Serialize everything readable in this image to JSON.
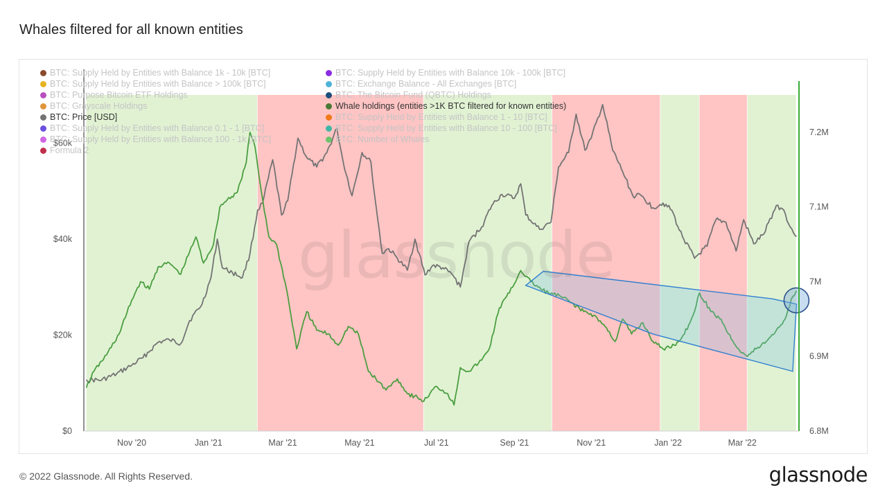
{
  "title": "Whales filtered for all known entities",
  "footer": {
    "copyright": "© 2022 Glassnode. All Rights Reserved.",
    "brand": "glassnode",
    "watermark": "glassnode"
  },
  "legend": {
    "left": [
      {
        "label": "BTC: Supply Held by Entities with Balance 1k - 10k [BTC]",
        "color": "#8b4a2b",
        "active": false
      },
      {
        "label": "BTC: Supply Held by Entities with Balance > 100k [BTC]",
        "color": "#e6b422",
        "active": false
      },
      {
        "label": "BTC: Purpose Bitcoin ETF Holdings",
        "color": "#b84fc0",
        "active": false
      },
      {
        "label": "BTC: Grayscale Holdings",
        "color": "#e0953a",
        "active": false
      },
      {
        "label": "BTC: Price [USD]",
        "color": "#737373",
        "active": true
      },
      {
        "label": "BTC: Supply Held by Entities with Balance 0.1 - 1 [BTC]",
        "color": "#6b4fe0",
        "active": false
      },
      {
        "label": "BTC: Supply Held by Entities with Balance 100 - 1k [BTC]",
        "color": "#cf66e6",
        "active": false
      },
      {
        "label": "Formula 2",
        "color": "#c0304a",
        "active": false
      }
    ],
    "right": [
      {
        "label": "BTC: Supply Held by Entities with Balance 10k - 100k [BTC]",
        "color": "#8a2be2",
        "active": false
      },
      {
        "label": "BTC: Exchange Balance - All Exchanges [BTC]",
        "color": "#4eb3d8",
        "active": false
      },
      {
        "label": "BTC: The Bitcoin Fund (QBTC) Holdings",
        "color": "#1f4e79",
        "active": false
      },
      {
        "label": "Whale holdings (entities >1K BTC filtered for known entities)",
        "color": "#4a7a35",
        "active": true
      },
      {
        "label": "BTC: Supply Held by Entities with Balance 1 - 10 [BTC]",
        "color": "#f07a1a",
        "active": false
      },
      {
        "label": "BTC: Supply Held by Entities with Balance 10 - 100 [BTC]",
        "color": "#3fb7a5",
        "active": false
      },
      {
        "label": "BTC: Number of Whales",
        "color": "#6cc46c",
        "active": false
      }
    ]
  },
  "chart_data": {
    "type": "line",
    "title": "Whales filtered for all known entities",
    "x_range": [
      "2020-09-24",
      "2022-04-15"
    ],
    "x_ticks": [
      {
        "label": "Nov '20",
        "date": "2020-11-01"
      },
      {
        "label": "Jan '21",
        "date": "2021-01-01"
      },
      {
        "label": "Mar '21",
        "date": "2021-03-01"
      },
      {
        "label": "May '21",
        "date": "2021-05-01"
      },
      {
        "label": "Jul '21",
        "date": "2021-07-01"
      },
      {
        "label": "Sep '21",
        "date": "2021-09-01"
      },
      {
        "label": "Nov '21",
        "date": "2021-11-01"
      },
      {
        "label": "Jan '22",
        "date": "2022-01-01"
      },
      {
        "label": "Mar '22",
        "date": "2022-03-01"
      }
    ],
    "y_left": {
      "min": 0,
      "max": 70000,
      "ticks": [
        {
          "v": 0,
          "label": "$0"
        },
        {
          "v": 20000,
          "label": "$20k"
        },
        {
          "v": 40000,
          "label": "$40k"
        },
        {
          "v": 60000,
          "label": "$60k"
        }
      ]
    },
    "y_right": {
      "min": 6800000,
      "max": 7250000,
      "ticks": [
        {
          "v": 6800000,
          "label": "6.8M"
        },
        {
          "v": 6900000,
          "label": "6.9M"
        },
        {
          "v": 7000000,
          "label": "7M"
        },
        {
          "v": 7100000,
          "label": "7.1M"
        },
        {
          "v": 7200000,
          "label": "7.2M"
        }
      ]
    },
    "shaded_periods": [
      {
        "start": "2020-09-26",
        "end": "2021-02-09",
        "color": "#e1f2d3"
      },
      {
        "start": "2021-02-09",
        "end": "2021-06-21",
        "color": "#ffc4c4"
      },
      {
        "start": "2021-06-21",
        "end": "2021-10-01",
        "color": "#e1f2d3"
      },
      {
        "start": "2021-10-01",
        "end": "2021-12-26",
        "color": "#ffc4c4"
      },
      {
        "start": "2021-12-26",
        "end": "2022-01-26",
        "color": "#e1f2d3"
      },
      {
        "start": "2022-01-26",
        "end": "2022-03-05",
        "color": "#ffc4c4"
      },
      {
        "start": "2022-03-05",
        "end": "2022-04-13",
        "color": "#e1f2d3"
      }
    ],
    "series": [
      {
        "name": "BTC: Price [USD]",
        "axis": "left",
        "color": "#737373",
        "points": [
          [
            "2020-09-26",
            10700
          ],
          [
            "2020-10-08",
            10600
          ],
          [
            "2020-10-20",
            11900
          ],
          [
            "2020-11-01",
            13700
          ],
          [
            "2020-11-10",
            15300
          ],
          [
            "2020-11-22",
            18500
          ],
          [
            "2020-12-01",
            19000
          ],
          [
            "2020-12-10",
            18200
          ],
          [
            "2020-12-17",
            23000
          ],
          [
            "2020-12-27",
            26500
          ],
          [
            "2021-01-03",
            32000
          ],
          [
            "2021-01-08",
            40000
          ],
          [
            "2021-01-12",
            34000
          ],
          [
            "2021-01-20",
            33000
          ],
          [
            "2021-01-28",
            32000
          ],
          [
            "2021-02-03",
            37000
          ],
          [
            "2021-02-09",
            46000
          ],
          [
            "2021-02-13",
            47500
          ],
          [
            "2021-02-21",
            56500
          ],
          [
            "2021-02-28",
            45000
          ],
          [
            "2021-03-05",
            48000
          ],
          [
            "2021-03-13",
            61000
          ],
          [
            "2021-03-20",
            57000
          ],
          [
            "2021-03-28",
            55000
          ],
          [
            "2021-04-05",
            58000
          ],
          [
            "2021-04-13",
            63000
          ],
          [
            "2021-04-18",
            56000
          ],
          [
            "2021-04-25",
            49000
          ],
          [
            "2021-05-03",
            58000
          ],
          [
            "2021-05-10",
            56000
          ],
          [
            "2021-05-13",
            49000
          ],
          [
            "2021-05-19",
            37000
          ],
          [
            "2021-05-24",
            38000
          ],
          [
            "2021-05-31",
            36000
          ],
          [
            "2021-06-08",
            33500
          ],
          [
            "2021-06-14",
            40000
          ],
          [
            "2021-06-22",
            32500
          ],
          [
            "2021-06-28",
            34500
          ],
          [
            "2021-07-06",
            34000
          ],
          [
            "2021-07-14",
            32500
          ],
          [
            "2021-07-20",
            30000
          ],
          [
            "2021-07-27",
            39500
          ],
          [
            "2021-08-06",
            42500
          ],
          [
            "2021-08-14",
            47000
          ],
          [
            "2021-08-22",
            49300
          ],
          [
            "2021-09-01",
            48500
          ],
          [
            "2021-09-06",
            51500
          ],
          [
            "2021-09-10",
            45000
          ],
          [
            "2021-09-21",
            42000
          ],
          [
            "2021-09-30",
            43500
          ],
          [
            "2021-10-06",
            55000
          ],
          [
            "2021-10-14",
            58000
          ],
          [
            "2021-10-20",
            66000
          ],
          [
            "2021-10-27",
            58500
          ],
          [
            "2021-11-01",
            61000
          ],
          [
            "2021-11-10",
            68000
          ],
          [
            "2021-11-18",
            58500
          ],
          [
            "2021-11-26",
            54000
          ],
          [
            "2021-12-04",
            49000
          ],
          [
            "2021-12-11",
            49000
          ],
          [
            "2021-12-20",
            46500
          ],
          [
            "2021-12-28",
            47500
          ],
          [
            "2022-01-04",
            46000
          ],
          [
            "2022-01-10",
            41800
          ],
          [
            "2022-01-22",
            36000
          ],
          [
            "2022-02-01",
            38500
          ],
          [
            "2022-02-08",
            44000
          ],
          [
            "2022-02-16",
            43500
          ],
          [
            "2022-02-24",
            37500
          ],
          [
            "2022-03-02",
            44000
          ],
          [
            "2022-03-10",
            39000
          ],
          [
            "2022-03-18",
            41000
          ],
          [
            "2022-03-28",
            47000
          ],
          [
            "2022-04-03",
            46000
          ],
          [
            "2022-04-08",
            42500
          ],
          [
            "2022-04-13",
            40500
          ]
        ]
      },
      {
        "name": "Whale holdings (entities >1K BTC filtered for known entities)",
        "axis": "right",
        "color": "#4a9e3f",
        "points": [
          [
            "2020-09-26",
            6858000
          ],
          [
            "2020-10-02",
            6880000
          ],
          [
            "2020-10-12",
            6902000
          ],
          [
            "2020-10-22",
            6930000
          ],
          [
            "2020-11-01",
            6975000
          ],
          [
            "2020-11-08",
            7000000
          ],
          [
            "2020-11-15",
            6990000
          ],
          [
            "2020-11-22",
            7020000
          ],
          [
            "2020-12-01",
            7025000
          ],
          [
            "2020-12-10",
            7010000
          ],
          [
            "2020-12-17",
            7040000
          ],
          [
            "2020-12-22",
            7060000
          ],
          [
            "2020-12-28",
            7025000
          ],
          [
            "2021-01-05",
            7050000
          ],
          [
            "2021-01-10",
            7100000
          ],
          [
            "2021-01-16",
            7110000
          ],
          [
            "2021-01-24",
            7120000
          ],
          [
            "2021-01-31",
            7160000
          ],
          [
            "2021-02-03",
            7200000
          ],
          [
            "2021-02-07",
            7180000
          ],
          [
            "2021-02-12",
            7120000
          ],
          [
            "2021-02-18",
            7060000
          ],
          [
            "2021-02-24",
            7050000
          ],
          [
            "2021-03-04",
            6990000
          ],
          [
            "2021-03-12",
            6910000
          ],
          [
            "2021-03-20",
            6960000
          ],
          [
            "2021-03-28",
            6935000
          ],
          [
            "2021-04-06",
            6930000
          ],
          [
            "2021-04-14",
            6915000
          ],
          [
            "2021-04-22",
            6940000
          ],
          [
            "2021-04-30",
            6930000
          ],
          [
            "2021-05-08",
            6880000
          ],
          [
            "2021-05-14",
            6870000
          ],
          [
            "2021-05-22",
            6855000
          ],
          [
            "2021-05-31",
            6870000
          ],
          [
            "2021-06-08",
            6850000
          ],
          [
            "2021-06-16",
            6845000
          ],
          [
            "2021-06-21",
            6840000
          ],
          [
            "2021-07-01",
            6860000
          ],
          [
            "2021-07-10",
            6850000
          ],
          [
            "2021-07-15",
            6835000
          ],
          [
            "2021-07-20",
            6885000
          ],
          [
            "2021-07-27",
            6880000
          ],
          [
            "2021-08-06",
            6895000
          ],
          [
            "2021-08-12",
            6910000
          ],
          [
            "2021-08-20",
            6965000
          ],
          [
            "2021-08-28",
            6985000
          ],
          [
            "2021-09-06",
            7015000
          ],
          [
            "2021-09-14",
            7000000
          ],
          [
            "2021-09-22",
            6990000
          ],
          [
            "2021-09-28",
            6985000
          ],
          [
            "2021-10-08",
            6980000
          ],
          [
            "2021-10-18",
            6970000
          ],
          [
            "2021-10-26",
            6960000
          ],
          [
            "2021-11-03",
            6955000
          ],
          [
            "2021-11-12",
            6940000
          ],
          [
            "2021-11-20",
            6920000
          ],
          [
            "2021-11-26",
            6950000
          ],
          [
            "2021-12-03",
            6930000
          ],
          [
            "2021-12-12",
            6945000
          ],
          [
            "2021-12-20",
            6920000
          ],
          [
            "2021-12-28",
            6910000
          ],
          [
            "2022-01-06",
            6915000
          ],
          [
            "2022-01-14",
            6930000
          ],
          [
            "2022-01-22",
            6960000
          ],
          [
            "2022-01-26",
            6985000
          ],
          [
            "2022-02-04",
            6960000
          ],
          [
            "2022-02-12",
            6950000
          ],
          [
            "2022-02-18",
            6930000
          ],
          [
            "2022-02-26",
            6910000
          ],
          [
            "2022-03-05",
            6900000
          ],
          [
            "2022-03-12",
            6910000
          ],
          [
            "2022-03-20",
            6920000
          ],
          [
            "2022-03-28",
            6935000
          ],
          [
            "2022-04-04",
            6950000
          ],
          [
            "2022-04-10",
            6980000
          ],
          [
            "2022-04-13",
            6988000
          ]
        ]
      }
    ],
    "annotations": [
      {
        "type": "channel",
        "color": "#2f7fd0",
        "points": [
          [
            "2021-09-10",
            6995000
          ],
          [
            "2021-12-20",
            6930000
          ],
          [
            "2022-04-10",
            6880000
          ],
          [
            "2022-04-13",
            6970000
          ],
          [
            "2022-03-25",
            6977000
          ],
          [
            "2021-09-24",
            7014000
          ]
        ]
      },
      {
        "type": "circle",
        "at": [
          "2022-04-13",
          6975000
        ],
        "color": "#2c4f8c"
      }
    ]
  }
}
